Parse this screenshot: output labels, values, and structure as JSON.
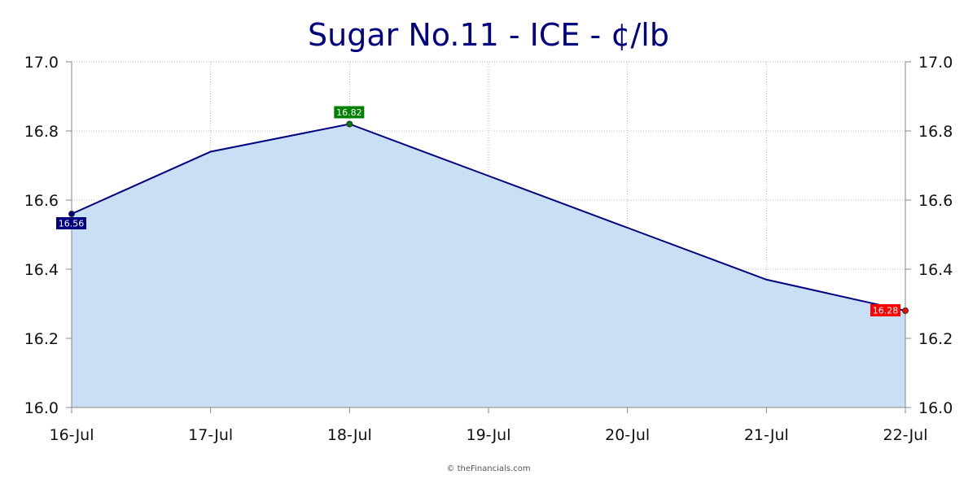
{
  "chart_data": {
    "type": "area",
    "title": "Sugar No.11 - ICE - ¢/lb",
    "categories": [
      "16-Jul",
      "17-Jul",
      "18-Jul",
      "19-Jul",
      "20-Jul",
      "21-Jul",
      "22-Jul"
    ],
    "series": [
      {
        "values": [
          16.56,
          16.74,
          16.82,
          16.67,
          16.52,
          16.37,
          16.28
        ]
      }
    ],
    "ylim": [
      16.0,
      17.0
    ],
    "y_ticks": [
      "16.0",
      "16.2",
      "16.4",
      "16.6",
      "16.8",
      "17.0"
    ],
    "y_axis_sides": [
      "left",
      "right"
    ],
    "grid": true,
    "annotations": [
      {
        "index": 0,
        "text": "16.56",
        "color": "#000080",
        "placement": "below"
      },
      {
        "index": 2,
        "text": "16.82",
        "color": "#008000",
        "placement": "above"
      },
      {
        "index": 6,
        "text": "16.28",
        "color": "#ff0000",
        "placement": "left"
      }
    ],
    "colors": {
      "title": "#000080",
      "line": "#000080",
      "fill": "#c9dff5",
      "grid": "#bbbbbb"
    }
  },
  "credit": "© theFinancials.com"
}
